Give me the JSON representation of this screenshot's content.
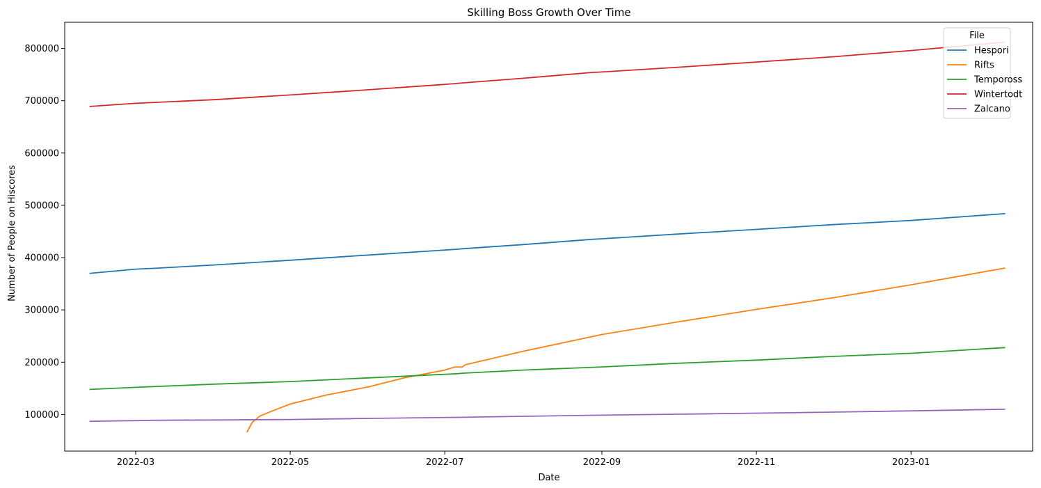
{
  "chart_data": {
    "type": "line",
    "title": "Skilling Boss Growth Over Time",
    "xlabel": "Date",
    "ylabel": "Number of People on Hiscores",
    "x_type": "date",
    "xlim": [
      "2022-02-01",
      "2023-02-18"
    ],
    "ylim": [
      30000,
      850000
    ],
    "x_ticks": [
      "2022-03-01",
      "2022-05-01",
      "2022-07-01",
      "2022-09-01",
      "2022-11-01",
      "2023-01-01"
    ],
    "x_tick_labels": [
      "2022-03",
      "2022-05",
      "2022-07",
      "2022-09",
      "2022-11",
      "2023-01"
    ],
    "y_ticks": [
      100000,
      200000,
      300000,
      400000,
      500000,
      600000,
      700000,
      800000
    ],
    "y_tick_labels": [
      "100000",
      "200000",
      "300000",
      "400000",
      "500000",
      "600000",
      "700000",
      "800000"
    ],
    "grid": false,
    "legend": {
      "title": "File",
      "placement": "top-right"
    },
    "series": [
      {
        "name": "Hespori",
        "color": "#1f77b4",
        "x": [
          "2022-02-11",
          "2022-03-01",
          "2022-03-10",
          "2022-04-01",
          "2022-05-01",
          "2022-06-01",
          "2022-07-06",
          "2022-07-08",
          "2022-08-01",
          "2022-08-28",
          "2022-09-01",
          "2022-10-01",
          "2022-11-01",
          "2022-12-01",
          "2023-01-01",
          "2023-02-07"
        ],
        "y": [
          370000,
          378000,
          380000,
          386000,
          395000,
          405000,
          416000,
          417000,
          425000,
          435000,
          436000,
          445000,
          454000,
          463000,
          471000,
          484000
        ]
      },
      {
        "name": "Rifts",
        "color": "#ff7f0e",
        "x": [
          "2022-04-14",
          "2022-04-16",
          "2022-04-19",
          "2022-04-24",
          "2022-05-01",
          "2022-05-15",
          "2022-06-01",
          "2022-06-15",
          "2022-07-01",
          "2022-07-05",
          "2022-07-08",
          "2022-07-09",
          "2022-08-01",
          "2022-09-01",
          "2022-10-01",
          "2022-11-01",
          "2022-12-01",
          "2023-01-01",
          "2023-02-07"
        ],
        "y": [
          67000,
          85000,
          97000,
          107000,
          120000,
          137000,
          153000,
          170000,
          185000,
          191000,
          191000,
          195000,
          221000,
          253000,
          277000,
          301000,
          323000,
          348000,
          380000
        ]
      },
      {
        "name": "Tempoross",
        "color": "#2ca02c",
        "x": [
          "2022-02-11",
          "2022-03-01",
          "2022-04-01",
          "2022-05-01",
          "2022-06-01",
          "2022-07-06",
          "2022-07-08",
          "2022-08-01",
          "2022-09-01",
          "2022-10-01",
          "2022-11-01",
          "2022-12-01",
          "2023-01-01",
          "2023-02-07"
        ],
        "y": [
          148000,
          152000,
          158000,
          163000,
          170000,
          178000,
          179000,
          185000,
          191000,
          198000,
          204000,
          211000,
          217000,
          228000
        ]
      },
      {
        "name": "Wintertodt",
        "color": "#d62728",
        "x": [
          "2022-02-11",
          "2022-03-01",
          "2022-03-10",
          "2022-04-01",
          "2022-05-01",
          "2022-06-01",
          "2022-07-06",
          "2022-07-08",
          "2022-08-01",
          "2022-08-28",
          "2022-09-01",
          "2022-10-01",
          "2022-11-01",
          "2022-12-01",
          "2023-01-01",
          "2023-02-07"
        ],
        "y": [
          689000,
          695000,
          697000,
          702000,
          711000,
          721000,
          733000,
          734000,
          743000,
          754000,
          755000,
          764000,
          774000,
          784000,
          796000,
          812000
        ]
      },
      {
        "name": "Zalcano",
        "color": "#9467bd",
        "x": [
          "2022-02-11",
          "2022-03-10",
          "2022-04-01",
          "2022-05-01",
          "2022-06-01",
          "2022-07-06",
          "2022-08-01",
          "2022-08-28",
          "2022-10-01",
          "2022-11-01",
          "2022-12-01",
          "2023-01-01",
          "2023-02-07"
        ],
        "y": [
          87000,
          89000,
          89500,
          90500,
          92500,
          94500,
          96500,
          98500,
          100500,
          102500,
          104500,
          107000,
          110000
        ]
      }
    ]
  }
}
